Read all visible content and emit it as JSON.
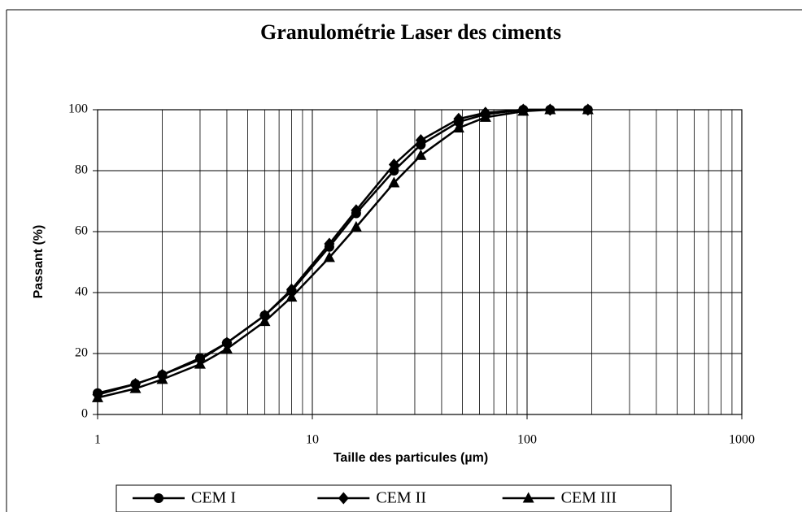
{
  "chart_data": {
    "type": "line",
    "title": "Granulométrie Laser des ciments",
    "x_label": "Taille des particules (µm)",
    "y_label": "Passant (%)",
    "x": [
      1,
      1.5,
      2,
      3,
      4,
      6,
      8,
      12,
      16,
      24,
      32,
      48,
      64,
      96,
      128,
      192
    ],
    "series": [
      {
        "name": "CEM I",
        "color": "#000000",
        "marker": "circle",
        "values": [
          7,
          10,
          13,
          18.5,
          23.5,
          32.5,
          40.5,
          55,
          66,
          80,
          88.5,
          96,
          98.5,
          100,
          100,
          100
        ]
      },
      {
        "name": "CEM II",
        "color": "#000000",
        "marker": "diamond",
        "values": [
          6.5,
          10,
          13,
          18,
          23.5,
          32.5,
          41,
          56,
          67,
          82,
          90,
          97,
          99,
          100,
          100,
          100
        ]
      },
      {
        "name": "CEM III",
        "color": "#000000",
        "marker": "triangle",
        "values": [
          5.5,
          8.5,
          11.5,
          16.5,
          21.5,
          30.5,
          38.5,
          51.5,
          61.5,
          76,
          85,
          94,
          97.5,
          99.5,
          100,
          100
        ]
      }
    ],
    "xlim": [
      1,
      1000
    ],
    "ylim": [
      0,
      100
    ],
    "xticks": [
      1,
      10,
      100,
      1000
    ],
    "yticks": [
      0,
      20,
      40,
      60,
      80,
      100
    ],
    "x_log": true,
    "grid": true,
    "minor_grid": true,
    "legend": "bottom"
  }
}
